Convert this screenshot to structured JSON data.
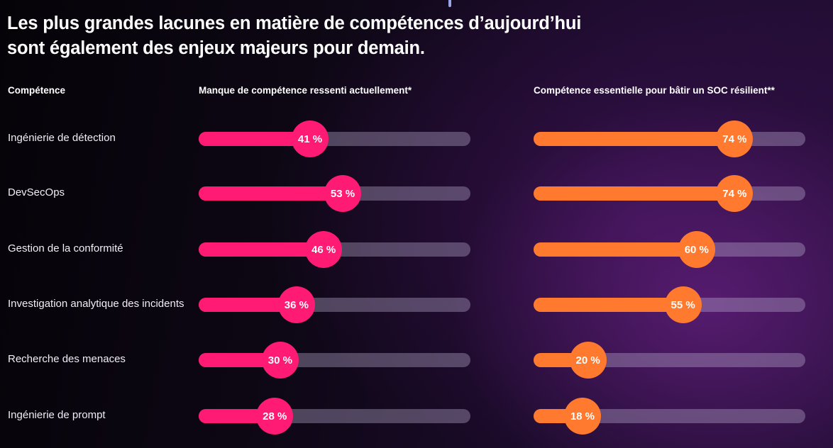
{
  "title": {
    "line1": "Les plus grandes lacunes en matière de compétences d’aujourd’hui",
    "line2": "sont également des enjeux majeurs pour demain."
  },
  "headers": {
    "skill": "Compétence",
    "current_gap": "Manque de compétence ressenti actuellement*",
    "essential": "Compétence essentielle pour bâtir un SOC résilient**"
  },
  "colors": {
    "current_gap": "#ff1a73",
    "essential": "#ff7a2e",
    "track": "#5e4f72"
  },
  "chart_data": {
    "type": "bar",
    "orientation": "horizontal",
    "ylim": [
      0,
      100
    ],
    "categories": [
      "Ingénierie de détection",
      "DevSecOps",
      "Gestion de la conformité",
      "Investigation analytique des incidents",
      "Recherche des menaces",
      "Ingénierie de prompt"
    ],
    "series": [
      {
        "name": "Manque de compétence ressenti actuellement*",
        "values": [
          41,
          53,
          46,
          36,
          30,
          28
        ],
        "labels": [
          "41 %",
          "53 %",
          "46 %",
          "36 %",
          "30 %",
          "28 %"
        ]
      },
      {
        "name": "Compétence essentielle pour bâtir un SOC résilient**",
        "values": [
          74,
          74,
          60,
          55,
          20,
          18
        ],
        "labels": [
          "74 %",
          "74 %",
          "60 %",
          "55 %",
          "20 %",
          "18 %"
        ]
      }
    ]
  }
}
